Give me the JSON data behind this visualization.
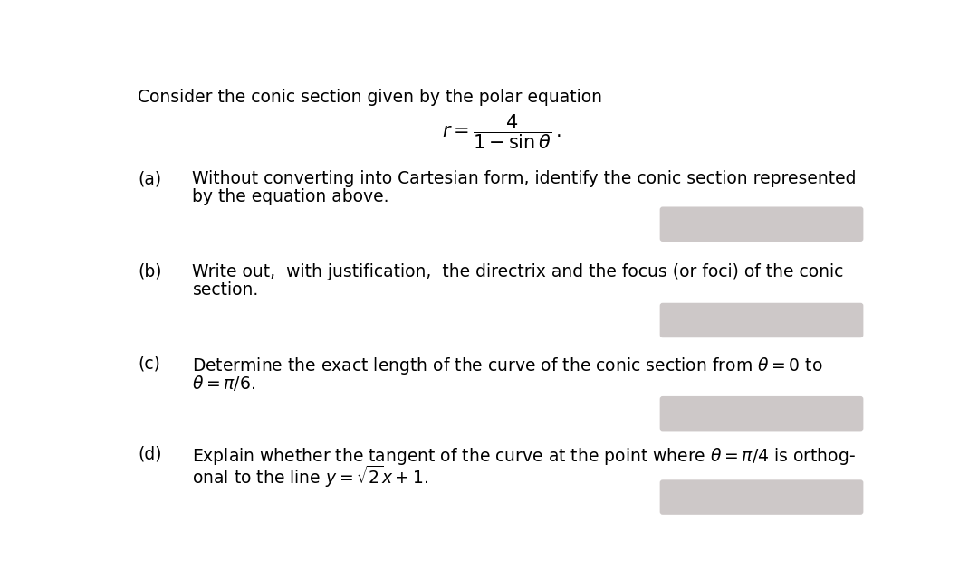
{
  "background_color": "#ffffff",
  "title_text": "Consider the conic section given by the polar equation",
  "parts": [
    {
      "label": "(a)",
      "line1": "Without converting into Cartesian form, identify the conic section represented",
      "line2": "by the equation above."
    },
    {
      "label": "(b)",
      "line1": "Write out,  with justification,  the directrix and the focus (or foci) of the conic",
      "line2": "section."
    },
    {
      "label": "(c)",
      "line1_latex": "Determine the exact length of the curve of the conic section from $\\theta = 0$ to",
      "line2_latex": "$\\theta = \\pi/6$."
    },
    {
      "label": "(d)",
      "line1_latex": "Explain whether the tangent of the curve at the point where $\\theta = \\pi/4$ is orthog-",
      "line2_latex": "onal to the line $y = \\sqrt{2}x+1$."
    }
  ],
  "answer_box_color": "#cdc8c8",
  "title_fontsize": 13.5,
  "label_fontsize": 13.5,
  "text_fontsize": 13.5,
  "eq_fontsize": 15
}
